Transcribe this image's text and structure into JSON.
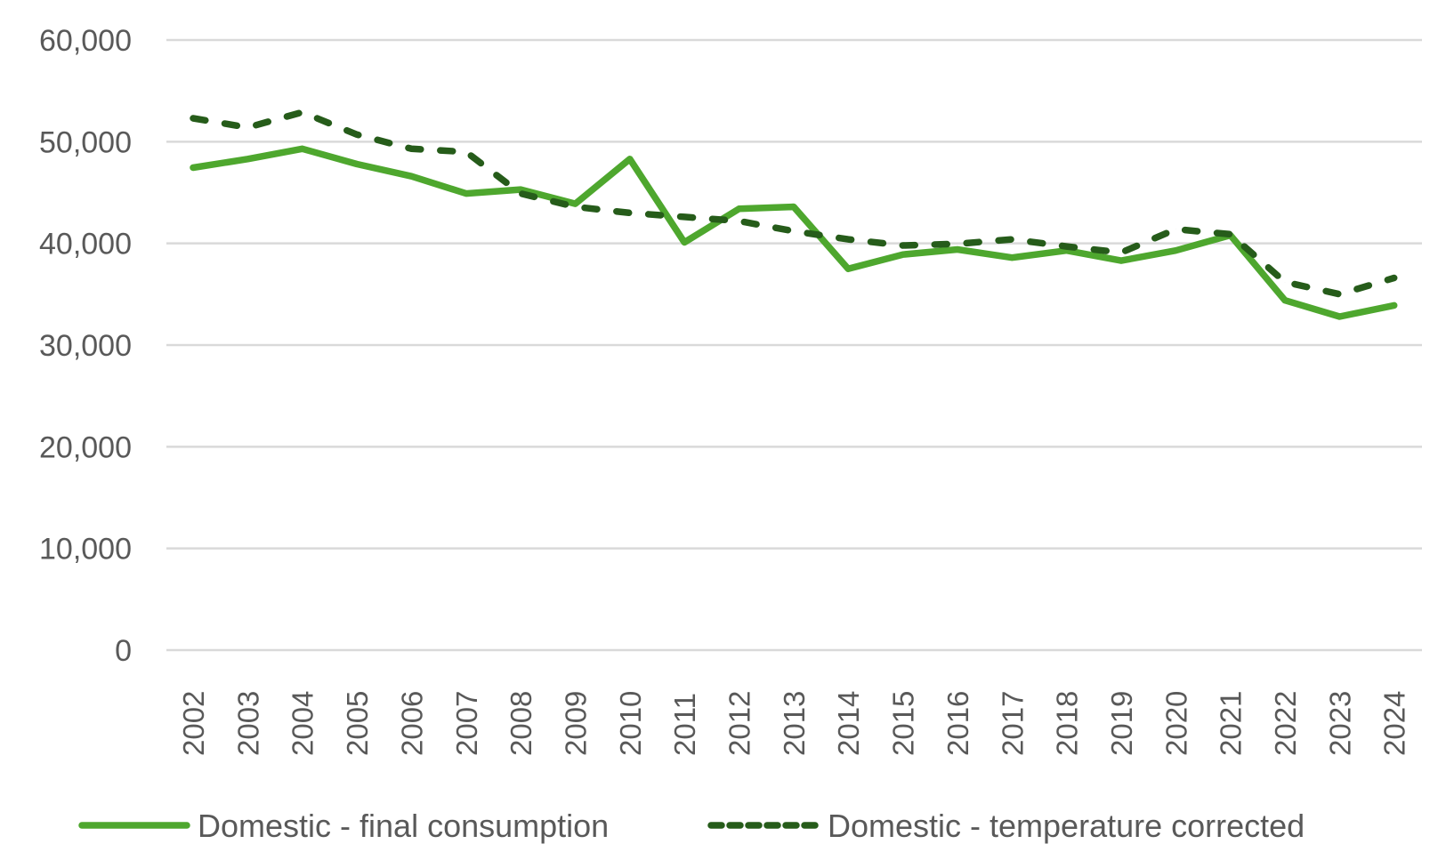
{
  "chart_data": {
    "type": "line",
    "title": "",
    "xlabel": "",
    "ylabel": "",
    "ylim": [
      0,
      60000
    ],
    "yticks": [
      0,
      10000,
      20000,
      30000,
      40000,
      50000,
      60000
    ],
    "ytick_labels": [
      "0",
      "10,000",
      "20,000",
      "30,000",
      "40,000",
      "50,000",
      "60,000"
    ],
    "grid": true,
    "legend_position": "bottom",
    "categories": [
      "2002",
      "2003",
      "2004",
      "2005",
      "2006",
      "2007",
      "2008",
      "2009",
      "2010",
      "2011",
      "2012",
      "2013",
      "2014",
      "2015",
      "2016",
      "2017",
      "2018",
      "2019",
      "2020",
      "2021",
      "2022",
      "2023",
      "2024"
    ],
    "series": [
      {
        "name": "Domestic - final consumption",
        "style": "solid",
        "color": "#4EA72E",
        "values": [
          47450,
          48300,
          49300,
          47800,
          46600,
          44900,
          45300,
          43900,
          48300,
          40100,
          43400,
          43600,
          37500,
          38900,
          39400,
          38600,
          39300,
          38300,
          39300,
          40800,
          34400,
          32800,
          33900
        ]
      },
      {
        "name": "Domestic - temperature corrected",
        "style": "dashed",
        "color": "#265C1A",
        "values": [
          52300,
          51400,
          52900,
          50700,
          49300,
          49000,
          44900,
          43600,
          43000,
          42600,
          42200,
          41200,
          40400,
          39800,
          39950,
          40400,
          39700,
          39100,
          41400,
          40900,
          36200,
          35000,
          36600
        ]
      }
    ]
  },
  "colors": {
    "text": "#595959",
    "grid": "#D9D9D9"
  }
}
